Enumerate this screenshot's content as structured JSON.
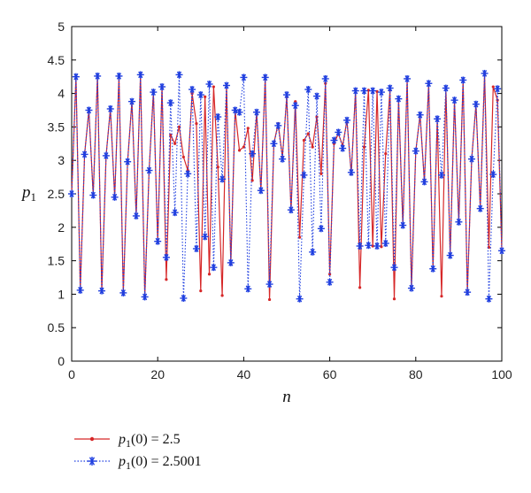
{
  "chart_data": {
    "type": "line",
    "xlabel": "n",
    "ylabel": "p",
    "ylabel_sub": "1",
    "xlim": [
      0,
      100
    ],
    "ylim": [
      0,
      5
    ],
    "xticks": [
      0,
      20,
      40,
      60,
      80,
      100
    ],
    "yticks": [
      0,
      0.5,
      1,
      1.5,
      2,
      2.5,
      3,
      3.5,
      4,
      4.5,
      5
    ],
    "grid": false,
    "legend_position": "bottom-left-outside",
    "series": [
      {
        "name_prefix": "p",
        "name_sub": "1",
        "name_suffix": "(0) = 2.5",
        "color": "#d62728",
        "marker": "dot",
        "line": "solid",
        "values": [
          2.5,
          4.25,
          1.06,
          3.09,
          3.75,
          2.48,
          4.26,
          1.05,
          3.07,
          3.77,
          2.45,
          4.26,
          1.02,
          2.98,
          3.88,
          2.17,
          4.28,
          0.96,
          2.85,
          4.02,
          1.79,
          4.1,
          1.22,
          3.38,
          3.25,
          3.5,
          3.05,
          2.85,
          4.0,
          3.55,
          1.05,
          3.95,
          1.3,
          4.1,
          2.9,
          0.98,
          4.12,
          1.45,
          3.75,
          3.15,
          3.2,
          3.48,
          2.7,
          3.72,
          2.55,
          4.25,
          0.92,
          3.25,
          3.55,
          3.05,
          3.95,
          2.25,
          3.88,
          1.85,
          3.3,
          3.4,
          3.2,
          3.65,
          2.8,
          4.15,
          1.3,
          3.25,
          3.4,
          3.22,
          3.6,
          2.8,
          4.05,
          1.1,
          3.2,
          4.05,
          1.72,
          4.03,
          1.71,
          3.1,
          4.05,
          0.93,
          3.92,
          2.03,
          4.22,
          1.09,
          3.14,
          3.68,
          2.68,
          4.15,
          1.38,
          3.62,
          0.97,
          4.08,
          1.58,
          3.9,
          2.08,
          4.2,
          1.03,
          3.02,
          3.84,
          2.28,
          4.3,
          1.7,
          4.1,
          3.9,
          1.65
        ]
      },
      {
        "name_prefix": "p",
        "name_sub": "1",
        "name_suffix": "(0) = 2.5001",
        "color": "#1f3fe0",
        "marker": "asterisk",
        "line": "dotted",
        "values": [
          2.5,
          4.25,
          1.06,
          3.09,
          3.75,
          2.48,
          4.26,
          1.05,
          3.07,
          3.77,
          2.45,
          4.26,
          1.02,
          2.98,
          3.88,
          2.17,
          4.28,
          0.96,
          2.85,
          4.02,
          1.79,
          4.1,
          1.55,
          3.86,
          2.22,
          4.28,
          0.94,
          2.8,
          4.06,
          1.68,
          3.98,
          1.86,
          4.14,
          1.4,
          3.65,
          2.72,
          4.12,
          1.47,
          3.75,
          3.72,
          4.24,
          1.08,
          3.1,
          3.72,
          2.55,
          4.24,
          1.15,
          3.25,
          3.52,
          3.02,
          3.98,
          2.26,
          3.82,
          0.93,
          2.78,
          4.06,
          1.63,
          3.96,
          1.98,
          4.22,
          1.18,
          3.3,
          3.42,
          3.18,
          3.6,
          2.82,
          4.04,
          1.72,
          4.04,
          1.73,
          4.04,
          1.72,
          4.02,
          1.76,
          4.08,
          1.4,
          3.92,
          2.03,
          4.22,
          1.09,
          3.14,
          3.68,
          2.68,
          4.15,
          1.38,
          3.62,
          2.78,
          4.08,
          1.58,
          3.9,
          2.08,
          4.2,
          1.03,
          3.02,
          3.84,
          2.28,
          4.3,
          0.93,
          2.79,
          4.07,
          1.65
        ]
      }
    ]
  }
}
